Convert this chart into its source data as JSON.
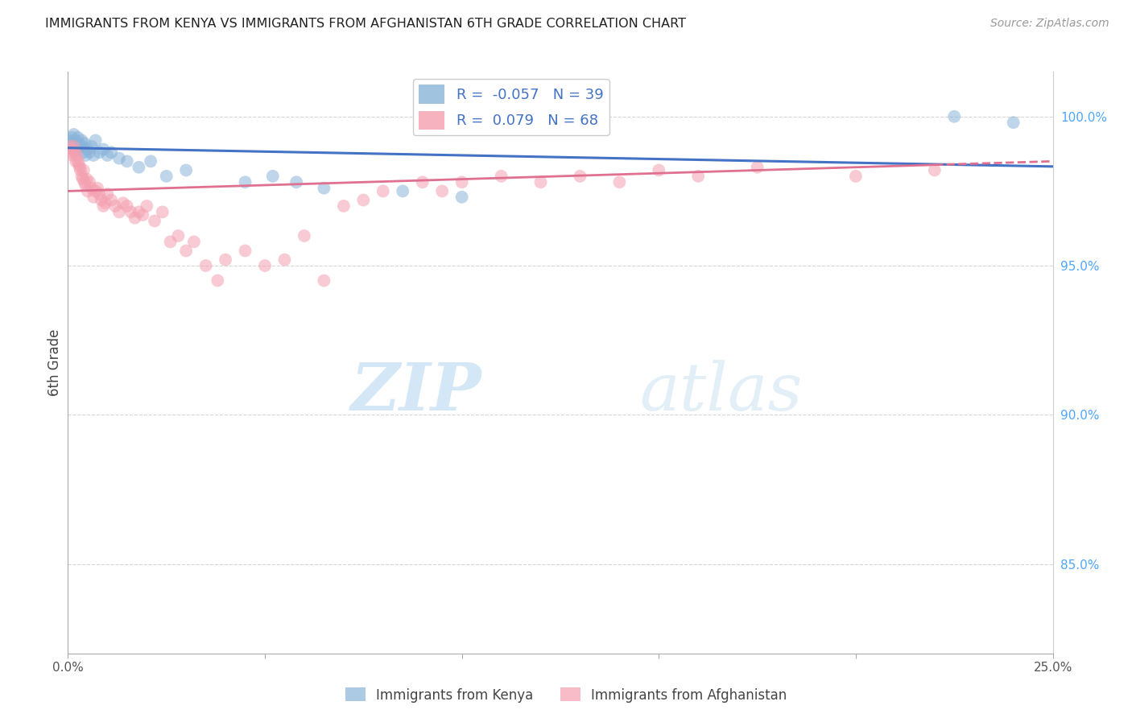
{
  "title": "IMMIGRANTS FROM KENYA VS IMMIGRANTS FROM AFGHANISTAN 6TH GRADE CORRELATION CHART",
  "source": "Source: ZipAtlas.com",
  "ylabel": "6th Grade",
  "xlim": [
    0.0,
    25.0
  ],
  "ylim": [
    82.0,
    101.5
  ],
  "xticks": [
    0.0,
    5.0,
    10.0,
    15.0,
    20.0,
    25.0
  ],
  "xticklabels": [
    "0.0%",
    "",
    "",
    "",
    "",
    "25.0%"
  ],
  "yticks": [
    85.0,
    90.0,
    95.0,
    100.0
  ],
  "yticklabels": [
    "85.0%",
    "90.0%",
    "95.0%",
    "100.0%"
  ],
  "legend_label1": "Immigrants from Kenya",
  "legend_label2": "Immigrants from Afghanistan",
  "R1": -0.057,
  "N1": 39,
  "R2": 0.079,
  "N2": 68,
  "color_kenya": "#89b4d9",
  "color_afghanistan": "#f4a0b0",
  "line_color_kenya": "#4472c4",
  "line_color_afghanistan": "#e07090",
  "watermark_zip": "ZIP",
  "watermark_atlas": "atlas",
  "kenya_x": [
    0.05,
    0.08,
    0.1,
    0.12,
    0.15,
    0.18,
    0.2,
    0.22,
    0.25,
    0.28,
    0.3,
    0.35,
    0.38,
    0.4,
    0.42,
    0.45,
    0.5,
    0.55,
    0.6,
    0.65,
    0.7,
    0.8,
    0.9,
    1.0,
    1.1,
    1.3,
    1.5,
    1.8,
    2.1,
    2.5,
    3.0,
    4.5,
    5.2,
    5.8,
    6.5,
    8.5,
    10.0,
    22.5,
    24.0
  ],
  "kenya_y": [
    99.2,
    99.0,
    99.3,
    99.1,
    99.4,
    99.0,
    99.2,
    98.9,
    99.3,
    99.1,
    99.0,
    99.2,
    99.0,
    98.8,
    99.1,
    98.7,
    98.9,
    98.8,
    99.0,
    98.7,
    99.2,
    98.8,
    98.9,
    98.7,
    98.8,
    98.6,
    98.5,
    98.3,
    98.5,
    98.0,
    98.2,
    97.8,
    98.0,
    97.8,
    97.6,
    97.5,
    97.3,
    100.0,
    99.8
  ],
  "afghanistan_x": [
    0.05,
    0.08,
    0.1,
    0.12,
    0.15,
    0.18,
    0.2,
    0.22,
    0.25,
    0.28,
    0.3,
    0.32,
    0.35,
    0.38,
    0.4,
    0.42,
    0.45,
    0.48,
    0.5,
    0.55,
    0.6,
    0.65,
    0.7,
    0.75,
    0.8,
    0.85,
    0.9,
    0.95,
    1.0,
    1.1,
    1.2,
    1.3,
    1.4,
    1.5,
    1.6,
    1.7,
    1.8,
    1.9,
    2.0,
    2.2,
    2.4,
    2.6,
    2.8,
    3.0,
    3.2,
    3.5,
    3.8,
    4.0,
    4.5,
    5.0,
    5.5,
    6.0,
    6.5,
    7.0,
    7.5,
    8.0,
    9.0,
    9.5,
    10.0,
    11.0,
    12.0,
    13.0,
    14.0,
    15.0,
    16.0,
    17.5,
    20.0,
    22.0
  ],
  "afghanistan_y": [
    99.0,
    98.8,
    98.9,
    98.7,
    99.0,
    98.8,
    98.5,
    98.7,
    98.5,
    98.4,
    98.3,
    98.2,
    98.0,
    97.9,
    98.2,
    97.8,
    97.7,
    97.9,
    97.5,
    97.8,
    97.6,
    97.3,
    97.5,
    97.6,
    97.4,
    97.2,
    97.0,
    97.1,
    97.4,
    97.2,
    97.0,
    96.8,
    97.1,
    97.0,
    96.8,
    96.6,
    96.8,
    96.7,
    97.0,
    96.5,
    96.8,
    95.8,
    96.0,
    95.5,
    95.8,
    95.0,
    94.5,
    95.2,
    95.5,
    95.0,
    95.2,
    96.0,
    94.5,
    97.0,
    97.2,
    97.5,
    97.8,
    97.5,
    97.8,
    98.0,
    97.8,
    98.0,
    97.8,
    98.2,
    98.0,
    98.3,
    98.0,
    98.2
  ]
}
